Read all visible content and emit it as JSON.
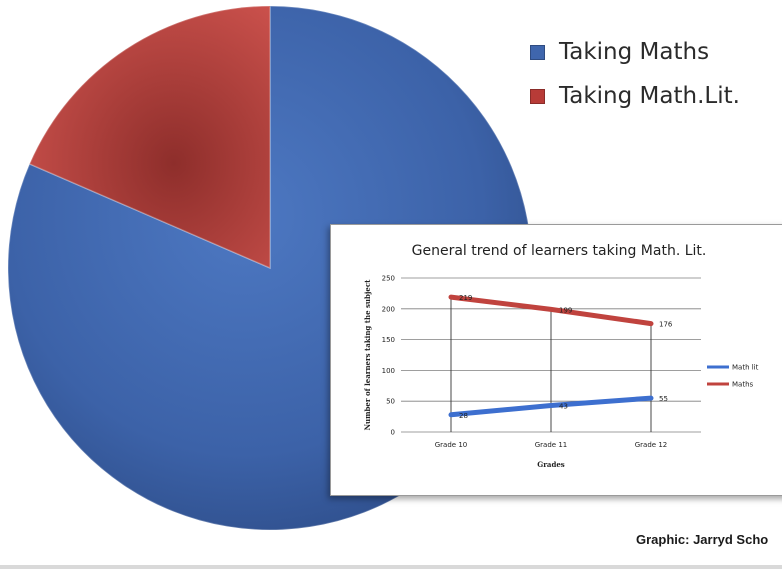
{
  "chart_data": [
    {
      "type": "pie",
      "legend": {
        "placement": "top-right"
      },
      "slices": [
        {
          "label": "Taking Maths",
          "value": 0.815,
          "color": "#3f66ad"
        },
        {
          "label": "Taking Math.Lit.",
          "value": 0.185,
          "color": "#b83b37"
        }
      ]
    },
    {
      "type": "line",
      "title": "General trend of learners taking Math. Lit.",
      "xlabel": "Grades",
      "ylabel": "Number of learners taking the subject",
      "categories": [
        "Grade 10",
        "Grade 11",
        "Grade 12"
      ],
      "ylim": [
        0,
        250
      ],
      "yticks": [
        "0",
        "50",
        "100",
        "150",
        "200",
        "250"
      ],
      "grid": true,
      "legend": {
        "placement": "right"
      },
      "series": [
        {
          "name": "Math lit",
          "values": [
            28,
            43,
            55
          ],
          "labels": [
            "28",
            "43",
            "55"
          ],
          "color": "#3d6fcf"
        },
        {
          "name": "Maths",
          "values": [
            219,
            199,
            176
          ],
          "labels": [
            "219",
            "199",
            "176"
          ],
          "color": "#c0433e"
        }
      ]
    }
  ],
  "credit": "Graphic: Jarryd Scho"
}
